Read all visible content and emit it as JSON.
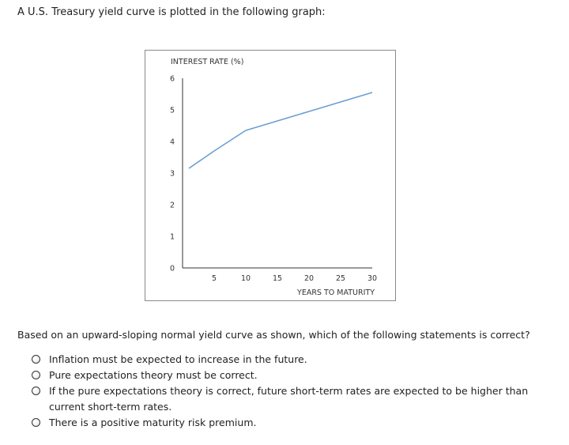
{
  "intro_text": "A U.S. Treasury yield curve is plotted in the following graph:",
  "question_text": "Based on an upward-sloping normal yield curve as shown, which of the following statements is correct?",
  "options": [
    {
      "label": "Inflation must be expected to increase in the future."
    },
    {
      "label": "Pure expectations theory must be correct."
    },
    {
      "label": "If the pure expectations theory is correct, future short-term rates are expected to be higher than current short-term rates."
    },
    {
      "label": "There is a positive maturity risk premium."
    }
  ],
  "colors": {
    "line": "#6a9fd0",
    "axis": "#333333",
    "frame": "#8a8a8a"
  },
  "chart_data": {
    "type": "line",
    "ylabel": "INTEREST RATE (%)",
    "xlabel": "YEARS TO MATURITY",
    "xlim": [
      0,
      30
    ],
    "ylim": [
      0,
      6
    ],
    "x_ticks": [
      5,
      10,
      15,
      20,
      25,
      30
    ],
    "y_ticks": [
      6,
      5,
      4,
      3,
      2,
      1,
      0
    ],
    "grid": false,
    "series": [
      {
        "x": [
          1,
          5,
          10,
          15,
          20,
          25,
          30
        ],
        "values": [
          3.15,
          3.7,
          4.35,
          4.65,
          4.95,
          5.25,
          5.55
        ]
      }
    ]
  }
}
